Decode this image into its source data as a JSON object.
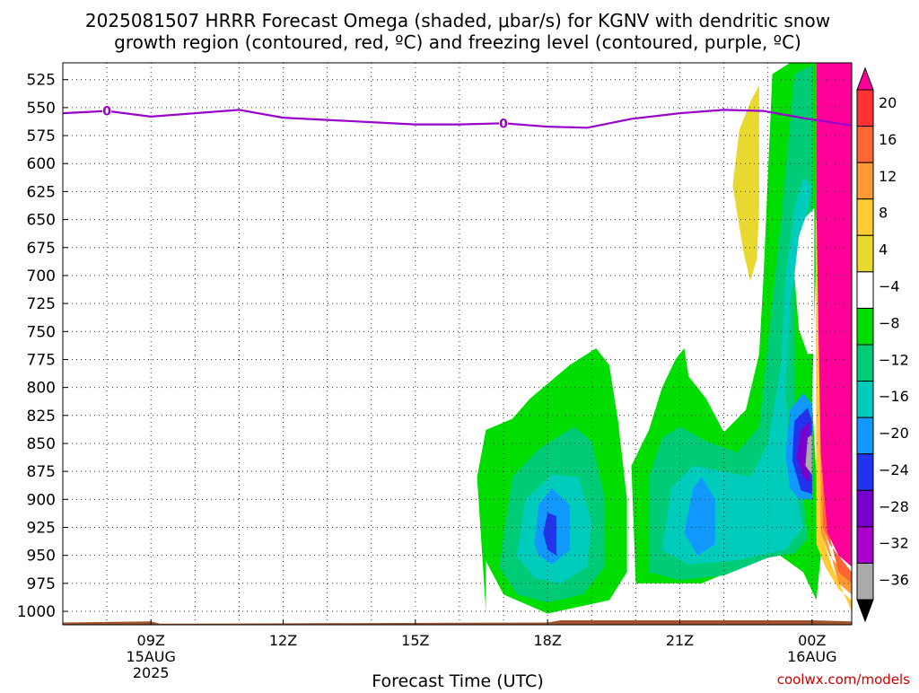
{
  "chart_data": {
    "type": "heatmap",
    "title_line1": "2025081507 HRRR Forecast Omega (shaded, μbar/s) for KGNV with dendritic snow",
    "title_line2": "growth region (contoured, red, ºC) and freezing level (contoured, purple, ºC)",
    "xlabel": "Forecast Time (UTC)",
    "ylabel": "",
    "credit": "coolwx.com/models",
    "x_range_hours": [
      7,
      24.9
    ],
    "y_range_mb": [
      510,
      1012
    ],
    "y_scale": "linear-inverted",
    "grid": true,
    "y_ticks": [
      525,
      550,
      575,
      600,
      625,
      650,
      675,
      700,
      725,
      750,
      775,
      800,
      825,
      850,
      875,
      900,
      925,
      950,
      975,
      1000
    ],
    "x_ticks": [
      {
        "hour": 9,
        "label": "09Z",
        "label2": "15AUG",
        "label3": "2025"
      },
      {
        "hour": 12,
        "label": "12Z",
        "label2": "",
        "label3": ""
      },
      {
        "hour": 15,
        "label": "15Z",
        "label2": "",
        "label3": ""
      },
      {
        "hour": 18,
        "label": "18Z",
        "label2": "",
        "label3": ""
      },
      {
        "hour": 21,
        "label": "21Z",
        "label2": "",
        "label3": ""
      },
      {
        "hour": 24,
        "label": "00Z",
        "label2": "16AUG",
        "label3": ""
      }
    ],
    "colorbar": {
      "labels": [
        "20",
        "16",
        "12",
        "8",
        "4",
        "−4",
        "−8",
        "−12",
        "−16",
        "−20",
        "−24",
        "−28",
        "−32",
        "−36"
      ],
      "colors": [
        "#ff0099",
        "#ff3333",
        "#ff6633",
        "#ff9933",
        "#ffcc33",
        "#e8d830",
        "#ffffff",
        "#00dd00",
        "#00cc77",
        "#00ccbb",
        "#1199ff",
        "#2233ee",
        "#7700cc",
        "#aa00cc",
        "#aaaaaa",
        "#000000"
      ]
    },
    "freezing_level": {
      "label": "0",
      "color": "#9900cc",
      "hours": [
        7,
        8,
        9,
        11,
        12,
        13,
        15,
        16,
        17,
        18,
        18.9,
        19.9,
        21,
        22,
        22.9,
        23.9,
        24.9
      ],
      "pressure_mb": [
        555,
        553,
        558,
        552,
        559,
        561,
        565,
        565,
        564,
        567,
        568,
        560,
        555,
        552,
        553,
        560,
        566
      ]
    },
    "surface_color": "#a0522d"
  }
}
